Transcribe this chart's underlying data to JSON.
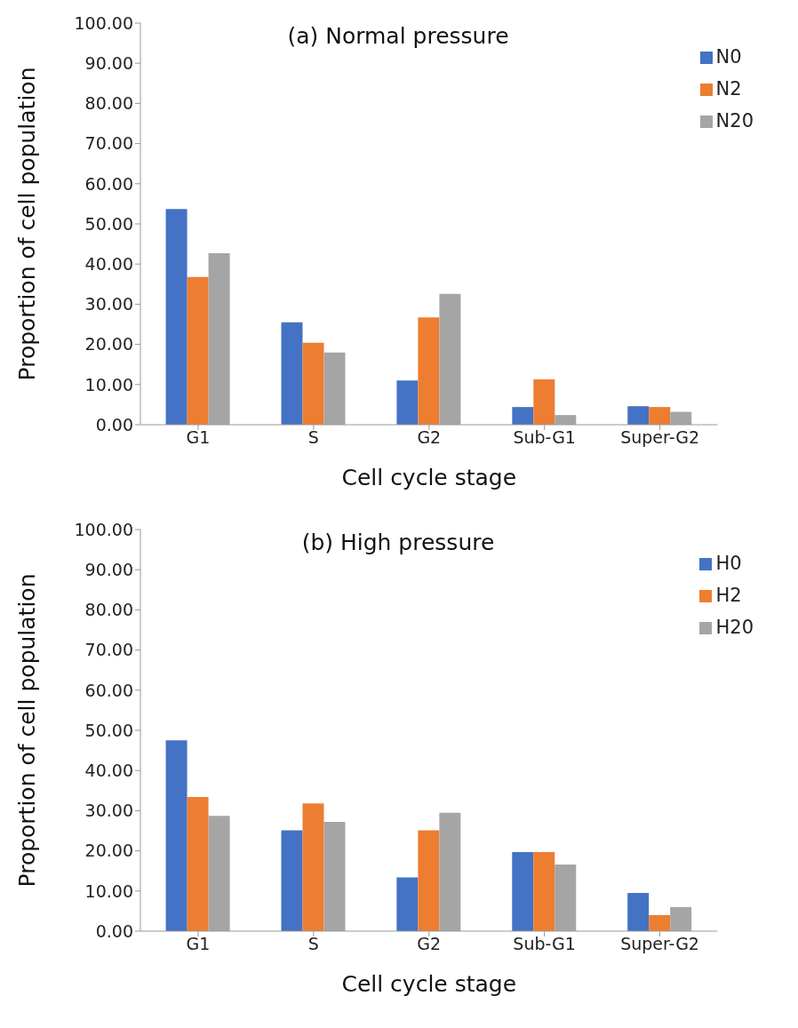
{
  "chart_data": [
    {
      "type": "bar",
      "title": "(a) Normal pressure",
      "xlabel": "Cell cycle stage",
      "ylabel": "Proportion of cell population",
      "categories": [
        "G1",
        "S",
        "G2",
        "Sub-G1",
        "Super-G2"
      ],
      "series": [
        {
          "name": "N0",
          "color": "#4472c4",
          "values": [
            53.7,
            25.5,
            11.0,
            4.4,
            4.6
          ]
        },
        {
          "name": "N2",
          "color": "#ed7d31",
          "values": [
            36.8,
            20.4,
            26.7,
            11.3,
            4.4
          ]
        },
        {
          "name": "N20",
          "color": "#a5a5a5",
          "values": [
            42.7,
            18.0,
            32.6,
            2.4,
            3.2
          ]
        }
      ],
      "ylim": [
        0,
        100
      ],
      "yticks": [
        {
          "value": 0,
          "label": "0.00"
        },
        {
          "value": 10,
          "label": "10.00"
        },
        {
          "value": 20,
          "label": "20.00"
        },
        {
          "value": 30,
          "label": "30.00"
        },
        {
          "value": 40,
          "label": "40.00"
        },
        {
          "value": 50,
          "label": "50.00"
        },
        {
          "value": 60,
          "label": "60.00"
        },
        {
          "value": 70,
          "label": "70.00"
        },
        {
          "value": 80,
          "label": "80.00"
        },
        {
          "value": 90,
          "label": "90.00"
        },
        {
          "value": 100,
          "label": "100.00"
        }
      ],
      "grid": false,
      "legend": "top right"
    },
    {
      "type": "bar",
      "title": "(b) High pressure",
      "xlabel": "Cell cycle stage",
      "ylabel": "Proportion of cell population",
      "categories": [
        "G1",
        "S",
        "G2",
        "Sub-G1",
        "Super-G2"
      ],
      "series": [
        {
          "name": "H0",
          "color": "#4472c4",
          "values": [
            47.5,
            25.1,
            13.4,
            19.7,
            9.5
          ]
        },
        {
          "name": "H2",
          "color": "#ed7d31",
          "values": [
            33.4,
            31.8,
            25.1,
            19.7,
            4.0
          ]
        },
        {
          "name": "H20",
          "color": "#a5a5a5",
          "values": [
            28.7,
            27.2,
            29.5,
            16.6,
            6.0
          ]
        }
      ],
      "ylim": [
        0,
        100
      ],
      "yticks": [
        {
          "value": 0,
          "label": "0.00"
        },
        {
          "value": 10,
          "label": "10.00"
        },
        {
          "value": 20,
          "label": "20.00"
        },
        {
          "value": 30,
          "label": "30.00"
        },
        {
          "value": 40,
          "label": "40.00"
        },
        {
          "value": 50,
          "label": "50.00"
        },
        {
          "value": 60,
          "label": "60.00"
        },
        {
          "value": 70,
          "label": "70.00"
        },
        {
          "value": 80,
          "label": "80.00"
        },
        {
          "value": 90,
          "label": "90.00"
        },
        {
          "value": 100,
          "label": "100.00"
        }
      ],
      "grid": false,
      "legend": "top right"
    }
  ]
}
